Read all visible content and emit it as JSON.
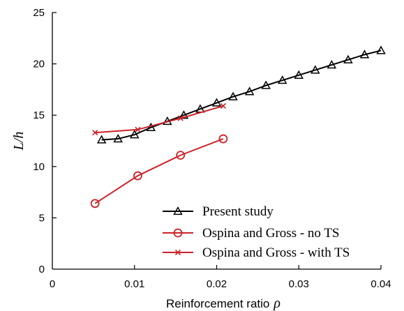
{
  "chart_data": {
    "type": "line",
    "xlabel": "Reinforcement ratio",
    "xlabel_symbol": "ρ",
    "ylabel": "L/h",
    "xlim": [
      0,
      0.04
    ],
    "ylim": [
      0,
      25
    ],
    "x_ticks": [
      "0",
      "0.01",
      "0.02",
      "0.03",
      "0.04"
    ],
    "x_tick_values": [
      0,
      0.01,
      0.02,
      0.03,
      0.04
    ],
    "y_ticks": [
      "0",
      "5",
      "10",
      "15",
      "20",
      "25"
    ],
    "y_tick_values": [
      0,
      5,
      10,
      15,
      20,
      25
    ],
    "grid": false,
    "legend_position": "bottom-right",
    "series": [
      {
        "name": "Present study",
        "color": "#000000",
        "marker": "triangle",
        "x": [
          0.006,
          0.008,
          0.01,
          0.012,
          0.014,
          0.016,
          0.018,
          0.02,
          0.022,
          0.024,
          0.026,
          0.028,
          0.03,
          0.032,
          0.034,
          0.036,
          0.038,
          0.04
        ],
        "y": [
          12.6,
          12.7,
          13.1,
          13.8,
          14.4,
          15.0,
          15.6,
          16.2,
          16.8,
          17.3,
          17.9,
          18.4,
          18.9,
          19.4,
          19.9,
          20.4,
          20.9,
          21.3
        ]
      },
      {
        "name": "Ospina and Gross - no TS",
        "color": "#cc2229",
        "marker": "circle",
        "x": [
          0.0052,
          0.0104,
          0.0156,
          0.0208
        ],
        "y": [
          6.4,
          9.1,
          11.1,
          12.7
        ]
      },
      {
        "name": "Ospina and Gross - with TS",
        "color": "#cc2229",
        "marker": "x",
        "x": [
          0.0052,
          0.0104,
          0.0156,
          0.0208
        ],
        "y": [
          13.3,
          13.6,
          14.7,
          15.9
        ]
      }
    ]
  }
}
